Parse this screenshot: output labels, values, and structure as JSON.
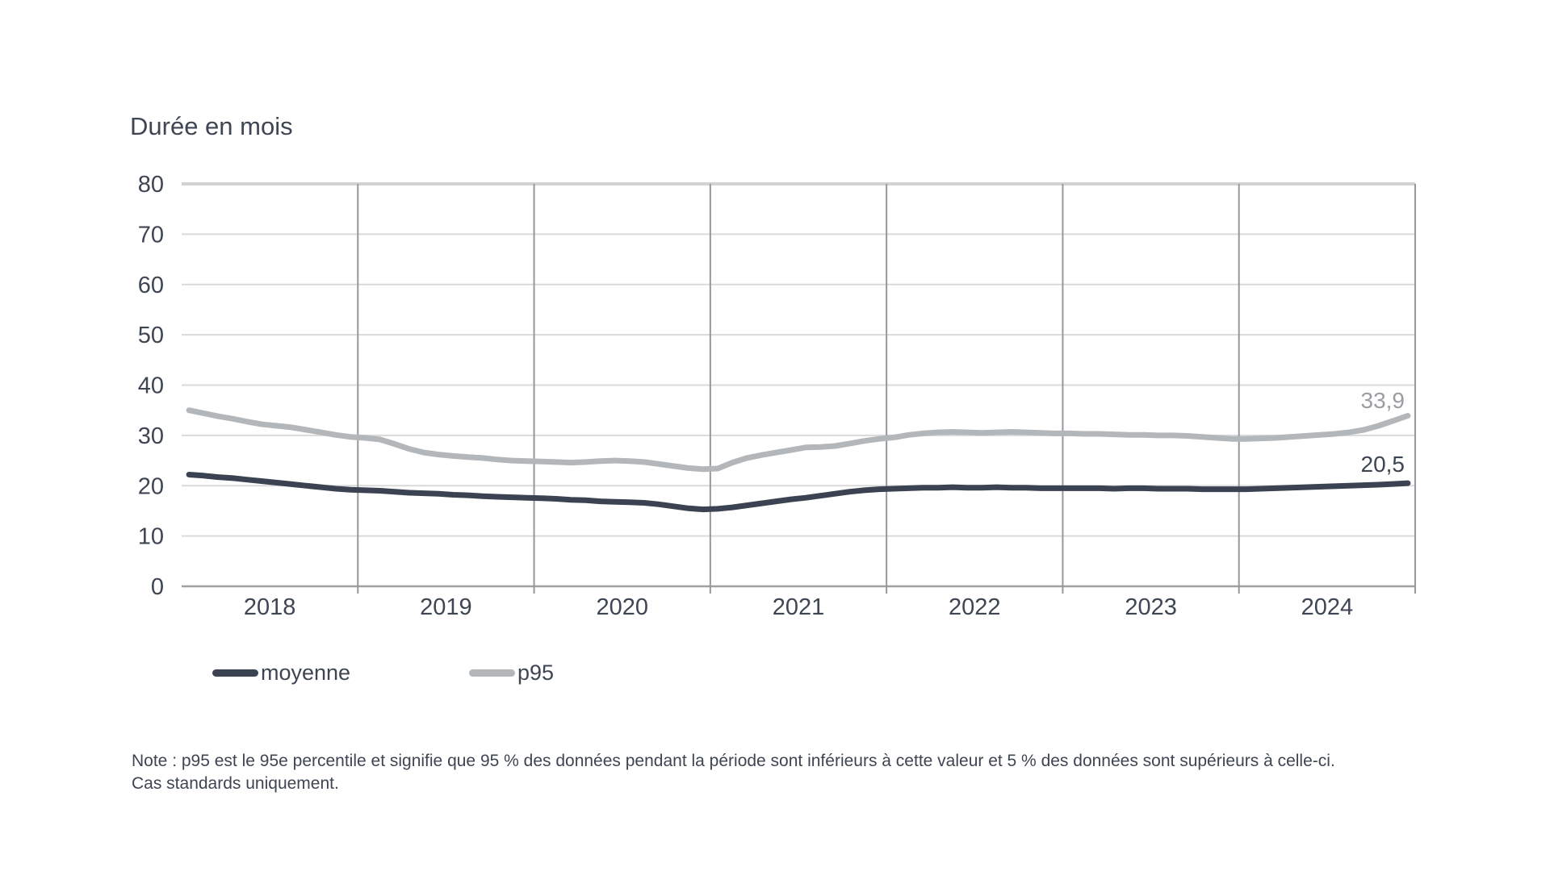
{
  "title": "Durée en mois",
  "end_labels": {
    "p95": "33,9",
    "moyenne": "20,5"
  },
  "legend": {
    "items": [
      {
        "label": "moyenne",
        "color": "#3b4251"
      },
      {
        "label": "p95",
        "color": "#b4b7ba"
      }
    ]
  },
  "note": {
    "line1": "Note : p95 est le 95e percentile et signifie que 95 % des données pendant la période sont inférieurs à cette valeur et 5 % des données sont supérieurs à celle-ci.",
    "line2": "Cas standards uniquement."
  },
  "chart_data": {
    "type": "line",
    "title": "Durée en mois",
    "ylabel": "Durée en mois",
    "xlabel": "",
    "ylim": [
      0,
      80
    ],
    "y_ticks": [
      0,
      10,
      20,
      30,
      40,
      50,
      60,
      70,
      80
    ],
    "categories": [
      "2018",
      "2019",
      "2020",
      "2021",
      "2022",
      "2023",
      "2024"
    ],
    "x_frequency": "monthly",
    "x_start": "2018-01",
    "x_end": "2024-12",
    "grid": true,
    "legend_position": "bottom",
    "series": [
      {
        "name": "p95",
        "color": "#b4b7ba",
        "end_value_label": "33,9",
        "values": [
          35.0,
          34.4,
          33.8,
          33.3,
          32.7,
          32.2,
          31.9,
          31.6,
          31.1,
          30.6,
          30.1,
          29.7,
          29.5,
          29.2,
          28.3,
          27.3,
          26.6,
          26.2,
          25.9,
          25.7,
          25.5,
          25.2,
          25.0,
          24.9,
          24.8,
          24.7,
          24.6,
          24.7,
          24.9,
          25.0,
          24.9,
          24.7,
          24.3,
          23.9,
          23.5,
          23.3,
          23.4,
          24.6,
          25.5,
          26.1,
          26.6,
          27.1,
          27.6,
          27.7,
          27.9,
          28.4,
          28.9,
          29.3,
          29.6,
          30.1,
          30.4,
          30.6,
          30.7,
          30.6,
          30.5,
          30.6,
          30.7,
          30.6,
          30.5,
          30.4,
          30.4,
          30.3,
          30.3,
          30.2,
          30.1,
          30.1,
          30.0,
          30.0,
          29.9,
          29.7,
          29.5,
          29.3,
          29.3,
          29.4,
          29.5,
          29.7,
          29.9,
          30.1,
          30.3,
          30.6,
          31.1,
          31.9,
          32.9,
          33.9
        ]
      },
      {
        "name": "moyenne",
        "color": "#3b4251",
        "end_value_label": "20,5",
        "values": [
          22.2,
          22.0,
          21.7,
          21.5,
          21.2,
          20.9,
          20.6,
          20.3,
          20.0,
          19.7,
          19.4,
          19.2,
          19.1,
          19.0,
          18.8,
          18.6,
          18.5,
          18.4,
          18.2,
          18.1,
          17.9,
          17.8,
          17.7,
          17.6,
          17.5,
          17.4,
          17.2,
          17.1,
          16.9,
          16.8,
          16.7,
          16.6,
          16.3,
          15.9,
          15.5,
          15.3,
          15.4,
          15.7,
          16.1,
          16.5,
          16.9,
          17.3,
          17.6,
          18.0,
          18.4,
          18.8,
          19.1,
          19.3,
          19.4,
          19.5,
          19.6,
          19.6,
          19.7,
          19.6,
          19.6,
          19.7,
          19.6,
          19.6,
          19.5,
          19.5,
          19.5,
          19.5,
          19.5,
          19.4,
          19.5,
          19.5,
          19.4,
          19.4,
          19.4,
          19.3,
          19.3,
          19.3,
          19.3,
          19.4,
          19.5,
          19.6,
          19.7,
          19.8,
          19.9,
          20.0,
          20.1,
          20.2,
          20.35,
          20.5
        ]
      }
    ]
  },
  "colors": {
    "text": "#3f4653",
    "h_gridline": "#dadada",
    "top_border": "#d2d2d2",
    "baseline": "#a0a0a3",
    "v_gridline": "#95989c",
    "p95_label_text": "#9a9da2"
  }
}
